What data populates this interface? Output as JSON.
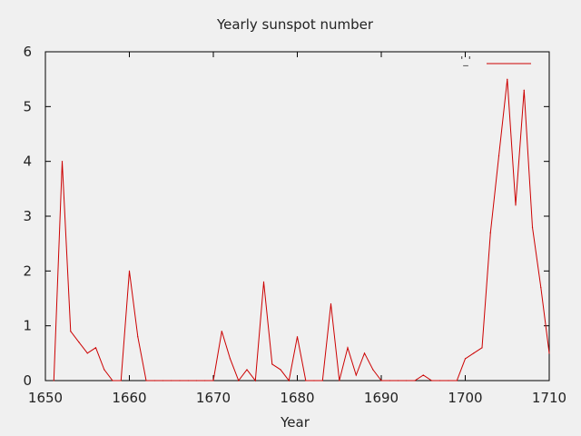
{
  "chart_data": {
    "type": "line",
    "title": "Yearly sunspot number",
    "xlabel": "Year",
    "ylabel": "",
    "xlim": [
      1650,
      1710
    ],
    "ylim": [
      0,
      6
    ],
    "xticks": [
      1650,
      1660,
      1670,
      1680,
      1690,
      1700,
      1710
    ],
    "yticks": [
      0,
      1,
      2,
      3,
      4,
      5,
      6
    ],
    "grid": false,
    "legend": {
      "position": "top-right",
      "entries": [
        {
          "label": "'_'",
          "color": "#cc0000"
        }
      ]
    },
    "series": [
      {
        "color": "#cc0000",
        "x": [
          1651,
          1652,
          1653,
          1654,
          1655,
          1656,
          1657,
          1658,
          1659,
          1660,
          1661,
          1662,
          1663,
          1664,
          1665,
          1666,
          1667,
          1668,
          1669,
          1670,
          1671,
          1672,
          1673,
          1674,
          1675,
          1676,
          1677,
          1678,
          1679,
          1680,
          1681,
          1682,
          1683,
          1684,
          1685,
          1686,
          1687,
          1688,
          1689,
          1690,
          1691,
          1692,
          1693,
          1694,
          1695,
          1696,
          1697,
          1698,
          1699,
          1700,
          1701,
          1702,
          1703,
          1704,
          1705,
          1706,
          1707,
          1708,
          1709,
          1710
        ],
        "y": [
          0,
          4.0,
          0.9,
          0.7,
          0.5,
          0.6,
          0.2,
          0,
          0,
          2.0,
          0.8,
          0,
          0,
          0,
          0,
          0,
          0,
          0,
          0,
          0,
          0.9,
          0.4,
          0,
          0.2,
          0,
          1.8,
          0.3,
          0.2,
          0,
          0.8,
          0,
          0,
          0,
          1.4,
          0,
          0.6,
          0.1,
          0.5,
          0.2,
          0,
          0,
          0,
          0,
          0,
          0.1,
          0,
          0,
          0,
          0,
          0.4,
          0.5,
          0.6,
          2.7,
          4.1,
          5.5,
          3.2,
          5.3,
          2.8,
          1.7,
          0.5
        ]
      }
    ]
  }
}
